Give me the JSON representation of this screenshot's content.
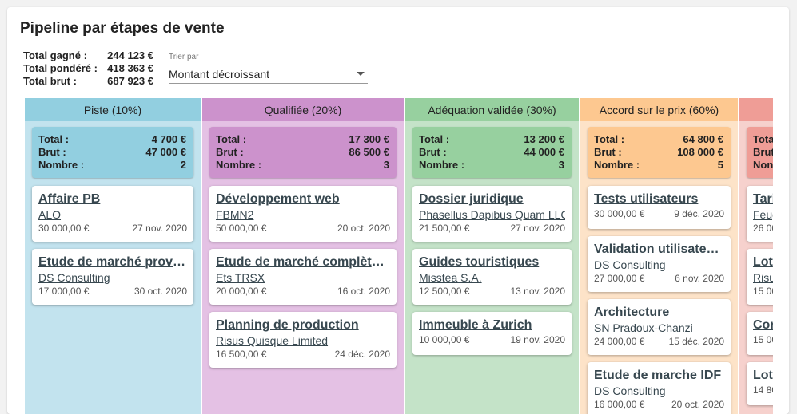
{
  "page": {
    "title": "Pipeline par étapes de vente"
  },
  "totals": {
    "gagne_label": "Total gagné :",
    "gagne_value": "244 123 €",
    "pondere_label": "Total pondéré :",
    "pondere_value": "418 363 €",
    "brut_label": "Total brut :",
    "brut_value": "687 923 €"
  },
  "sort": {
    "label": "Trier par",
    "value": "Montant décroissant"
  },
  "colors": {
    "piste_head": "#92cfe0",
    "piste_body": "#c2e3ee",
    "qualifiee_head": "#cc92cc",
    "qualifiee_body": "#e4c1e4",
    "adequation_head": "#97d09f",
    "adequation_body": "#c4e3c8",
    "accord_head": "#fdc890",
    "accord_body": "#fde3c8",
    "fifth_head": "#ef9d96",
    "fifth_body": "#f6d1cd"
  },
  "columns": [
    {
      "header": "Piste (10%)",
      "summary": {
        "total_label": "Total :",
        "total": "4 700 €",
        "brut_label": "Brut :",
        "brut": "47 000 €",
        "nombre_label": "Nombre :",
        "nombre": "2"
      },
      "deals": [
        {
          "title": "Affaire PB",
          "company": "ALO",
          "amount": "30 000,00 €",
          "date": "27 nov. 2020"
        },
        {
          "title": "Etude de marché province",
          "company": "DS Consulting",
          "amount": "17 000,00 €",
          "date": "30 oct. 2020"
        }
      ]
    },
    {
      "header": "Qualifiée (20%)",
      "summary": {
        "total_label": "Total :",
        "total": "17 300 €",
        "brut_label": "Brut :",
        "brut": "86 500 €",
        "nombre_label": "Nombre :",
        "nombre": "3"
      },
      "deals": [
        {
          "title": "Développement web",
          "company": "FBMN2",
          "amount": "50 000,00 €",
          "date": "20 oct. 2020"
        },
        {
          "title": "Etude de marché complète France",
          "company": "Ets TRSX",
          "amount": "20 000,00 €",
          "date": "16 oct. 2020"
        },
        {
          "title": "Planning de production",
          "company": "Risus Quisque Limited",
          "amount": "16 500,00 €",
          "date": "24 déc. 2020"
        }
      ]
    },
    {
      "header": "Adéquation validée (30%)",
      "summary": {
        "total_label": "Total :",
        "total": "13 200 €",
        "brut_label": "Brut :",
        "brut": "44 000 €",
        "nombre_label": "Nombre :",
        "nombre": "3"
      },
      "deals": [
        {
          "title": "Dossier juridique",
          "company": "Phasellus Dapibus Quam LLC",
          "amount": "21 500,00 €",
          "date": "27 nov. 2020"
        },
        {
          "title": "Guides touristiques",
          "company": "Misstea S.A.",
          "amount": "12 500,00 €",
          "date": "13 nov. 2020"
        },
        {
          "title": "Immeuble à Zurich",
          "amount": "10 000,00 €",
          "date": "19 nov. 2020"
        }
      ]
    },
    {
      "header": "Accord sur le prix (60%)",
      "summary": {
        "total_label": "Total :",
        "total": "64 800 €",
        "brut_label": "Brut :",
        "brut": "108 000 €",
        "nombre_label": "Nombre :",
        "nombre": "5"
      },
      "deals": [
        {
          "title": "Tests utilisateurs",
          "amount": "30 000,00 €",
          "date": "9 déc. 2020"
        },
        {
          "title": "Validation utilisateurs",
          "company": "DS Consulting",
          "amount": "27 000,00 €",
          "date": "6 nov. 2020"
        },
        {
          "title": "Architecture",
          "company": "SN Pradoux-Chanzi",
          "amount": "24 000,00 €",
          "date": "15 déc. 2020"
        },
        {
          "title": "Etude de marche IDF",
          "company": "DS Consulting",
          "amount": "16 000,00 €",
          "date": "20 oct. 2020"
        }
      ]
    },
    {
      "summary": {
        "total_label": "Tota",
        "brut_label": "Brut",
        "nombre_label": "Non"
      },
      "deals": [
        {
          "title": "Tari",
          "company": "Feug",
          "amount": "26 00"
        },
        {
          "title": "Lot",
          "company": "Risu",
          "amount": "15 00"
        },
        {
          "title": "Cor",
          "amount": "15 00"
        },
        {
          "title": "Lot",
          "amount": "14 80"
        }
      ]
    }
  ]
}
